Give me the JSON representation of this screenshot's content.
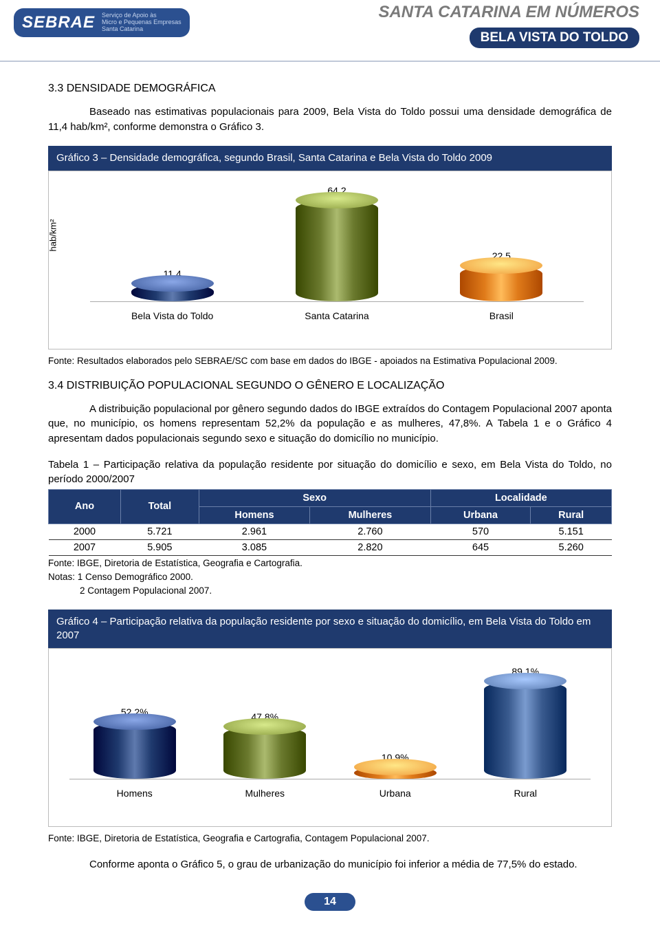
{
  "header": {
    "logo_main": "SEBRAE",
    "logo_sub": "Serviço de Apoio às\nMicro e Pequenas Empresas\nSanta Catarina",
    "title": "SANTA CATARINA EM NÚMEROS",
    "subtitle": "BELA VISTA DO TOLDO"
  },
  "section33": {
    "heading": "3.3   DENSIDADE DEMOGRÁFICA",
    "para": "Baseado nas estimativas populacionais para 2009, Bela Vista do Toldo possui uma densidade demográfica de 11,4 hab/km², conforme demonstra o Gráfico 3."
  },
  "chart3": {
    "type": "bar",
    "title": "Gráfico 3 – Densidade demográfica, segundo Brasil, Santa Catarina e Bela Vista do Toldo 2009",
    "ylabel": "hab/km²",
    "ymax": 70,
    "categories": [
      "Bela Vista do Toldo",
      "Santa Catarina",
      "Brasil"
    ],
    "values": [
      11.4,
      64.2,
      22.5
    ],
    "value_labels": [
      "11,4",
      "64,2",
      "22,5"
    ],
    "bar_colors": [
      "#1f3a6e",
      "#6b7a2e",
      "#e07b1a"
    ],
    "bar_top_colors": [
      "#3d5a9a",
      "#8a9c3e",
      "#f09a3a"
    ],
    "source": "Fonte: Resultados elaborados pelo SEBRAE/SC com base em dados do IBGE - apoiados na Estimativa Populacional 2009."
  },
  "section34": {
    "heading": "3.4   DISTRIBUIÇÃO POPULACIONAL SEGUNDO O GÊNERO E LOCALIZAÇÃO",
    "para": "A distribuição populacional por gênero segundo dados do IBGE extraídos do Contagem Populacional 2007 aponta que, no município, os homens representam 52,2% da população e as mulheres, 47,8%. A Tabela 1 e o Gráfico 4 apresentam dados populacionais segundo sexo e situação do domicílio no município."
  },
  "table1": {
    "caption": "Tabela 1 – Participação relativa da população residente por situação do domicílio e sexo, em Bela Vista do Toldo, no período 2000/2007",
    "head_ano": "Ano",
    "head_total": "Total",
    "head_sexo": "Sexo",
    "head_localidade": "Localidade",
    "head_homens": "Homens",
    "head_mulheres": "Mulheres",
    "head_urbana": "Urbana",
    "head_rural": "Rural",
    "rows": [
      [
        "2000",
        "5.721",
        "2.961",
        "2.760",
        "570",
        "5.151"
      ],
      [
        "2007",
        "5.905",
        "3.085",
        "2.820",
        "645",
        "5.260"
      ]
    ],
    "source": "Fonte: IBGE, Diretoria de Estatística, Geografia e Cartografia.",
    "note1": "Notas: 1 Censo Demográfico 2000.",
    "note2": "2 Contagem Populacional 2007."
  },
  "chart4": {
    "type": "bar",
    "title": "Gráfico 4 – Participação relativa da população residente por sexo e situação do domicílio, em Bela Vista do Toldo em 2007",
    "ymax": 100,
    "categories": [
      "Homens",
      "Mulheres",
      "Urbana",
      "Rural"
    ],
    "values": [
      52.2,
      47.8,
      10.9,
      89.1
    ],
    "value_labels": [
      "52,2%",
      "47,8%",
      "10,9%",
      "89,1%"
    ],
    "bar_colors": [
      "#1f3a6e",
      "#6b7a2e",
      "#e07b1a",
      "#3a5b8f"
    ],
    "bar_top_colors": [
      "#3d5a9a",
      "#8a9c3e",
      "#f09a3a",
      "#5a7bb0"
    ],
    "source": "Fonte: IBGE, Diretoria de Estatística, Geografia e Cartografia, Contagem Populacional 2007."
  },
  "closing_para": "Conforme aponta o Gráfico 5, o grau de urbanização do município foi inferior a média de 77,5% do estado.",
  "page_number": "14"
}
